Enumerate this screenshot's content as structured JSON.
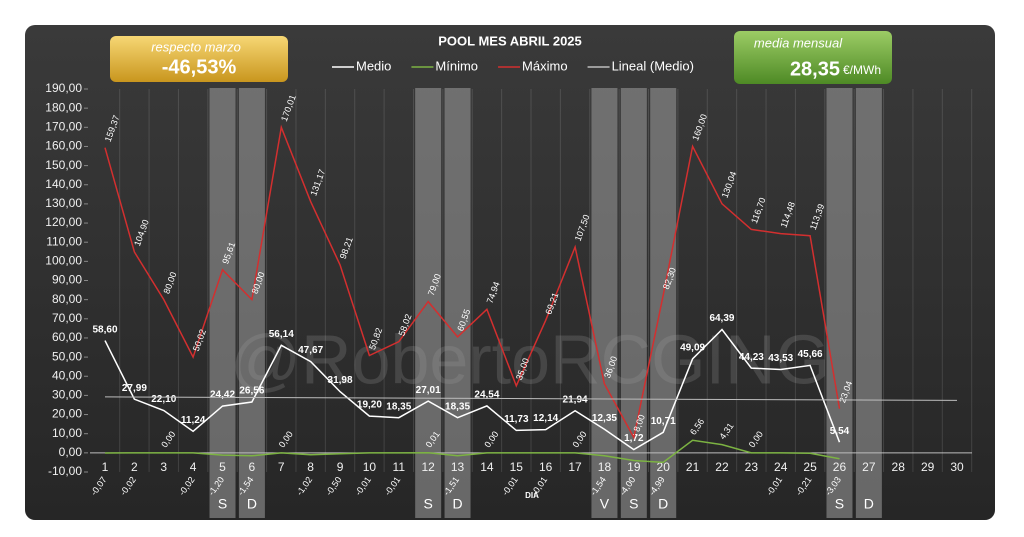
{
  "chart_data": {
    "type": "line",
    "title": "POOL  MES ABRIL 2025",
    "xlabel": "DIA",
    "watermark": "@RobertoRCGING",
    "change_box": {
      "label": "respecto marzo",
      "value": "-46,53%"
    },
    "mean_box": {
      "label": "media mensual",
      "value": "28,35",
      "unit": "€/MWh"
    },
    "x": [
      1,
      2,
      3,
      4,
      5,
      6,
      7,
      8,
      9,
      10,
      11,
      12,
      13,
      14,
      15,
      16,
      17,
      18,
      19,
      20,
      21,
      22,
      23,
      24,
      25,
      26,
      27,
      28,
      29,
      30
    ],
    "xlim": [
      1,
      30
    ],
    "xticks": [
      1,
      2,
      3,
      4,
      5,
      6,
      7,
      8,
      9,
      10,
      11,
      12,
      13,
      14,
      15,
      16,
      17,
      18,
      19,
      20,
      21,
      22,
      23,
      24,
      25,
      26,
      27,
      28,
      29,
      30
    ],
    "ylim": [
      -10,
      190
    ],
    "yticks": [
      {
        "value": -10,
        "label": "-10,00"
      },
      {
        "value": 0,
        "label": "0,00"
      },
      {
        "value": 10,
        "label": "10,00"
      },
      {
        "value": 20,
        "label": "20,00"
      },
      {
        "value": 30,
        "label": "30,00"
      },
      {
        "value": 40,
        "label": "40,00"
      },
      {
        "value": 50,
        "label": "50,00"
      },
      {
        "value": 60,
        "label": "60,00"
      },
      {
        "value": 70,
        "label": "70,00"
      },
      {
        "value": 80,
        "label": "80,00"
      },
      {
        "value": 90,
        "label": "90,00"
      },
      {
        "value": 100,
        "label": "100,00"
      },
      {
        "value": 110,
        "label": "110,00"
      },
      {
        "value": 120,
        "label": "120,00"
      },
      {
        "value": 130,
        "label": "130,00"
      },
      {
        "value": 140,
        "label": "140,00"
      },
      {
        "value": 150,
        "label": "150,00"
      },
      {
        "value": 160,
        "label": "160,00"
      },
      {
        "value": 170,
        "label": "170,00"
      },
      {
        "value": 180,
        "label": "180,00"
      },
      {
        "value": 190,
        "label": "190,00"
      }
    ],
    "grid": "x",
    "legend": "top",
    "shaded": [
      {
        "x": 5,
        "label": "S"
      },
      {
        "x": 6,
        "label": "D"
      },
      {
        "x": 12,
        "label": "S"
      },
      {
        "x": 13,
        "label": "D"
      },
      {
        "x": 18,
        "label": "V"
      },
      {
        "x": 19,
        "label": "S"
      },
      {
        "x": 20,
        "label": "D"
      },
      {
        "x": 26,
        "label": "S"
      },
      {
        "x": 27,
        "label": "D"
      }
    ],
    "series": [
      {
        "name": "Medio",
        "color": "#ffffff",
        "label_style": "bold",
        "values": [
          58.6,
          27.99,
          22.1,
          11.24,
          24.42,
          26.56,
          56.14,
          47.67,
          31.98,
          19.2,
          18.35,
          27.01,
          18.35,
          24.54,
          11.73,
          12.14,
          21.94,
          12.35,
          1.72,
          10.71,
          49.09,
          64.39,
          44.23,
          43.53,
          45.66,
          5.54,
          null,
          null,
          null,
          null
        ],
        "value_labels": [
          "58,60",
          "27,99",
          "22,10",
          "11,24",
          "24,42",
          "26,56",
          "56,14",
          "47,67",
          "31,98",
          "19,20",
          "18,35",
          "27,01",
          "18,35",
          "24,54",
          "11,73",
          "12,14",
          "21,94",
          "12,35",
          "1,72",
          "10,71",
          "49,09",
          "64,39",
          "44,23",
          "43,53",
          "45,66",
          "5,54",
          null,
          null,
          null,
          null
        ]
      },
      {
        "name": "Mínimo",
        "color": "#7cb342",
        "label_style": "min",
        "values": [
          -0.07,
          -0.02,
          0.0,
          -0.02,
          -1.2,
          -1.54,
          0.0,
          -1.02,
          -0.5,
          -0.01,
          -0.01,
          0.01,
          -1.51,
          0.0,
          -0.01,
          -0.01,
          0.0,
          -1.54,
          -4.0,
          -4.99,
          6.56,
          4.31,
          0.0,
          -0.01,
          -0.21,
          -3.03,
          null,
          null,
          null,
          null
        ],
        "value_labels": [
          "-0,07",
          "-0,02",
          "0,00",
          "-0,02",
          "-1,20",
          "-1,54",
          "0,00",
          "-1,02",
          "-0,50",
          "-0,01",
          "-0,01",
          "0,01",
          "-1,51",
          "0,00",
          "-0,01",
          "-0,01",
          "0,00",
          "-1,54",
          "-4,00",
          "-4,99",
          "6,56",
          "4,31",
          "0,00",
          "-0,01",
          "-0,21",
          "-3,03",
          null,
          null,
          null,
          null
        ]
      },
      {
        "name": "Máximo",
        "color": "#d32f2f",
        "label_style": "max",
        "values": [
          159.37,
          104.9,
          80.0,
          50.02,
          95.61,
          80.0,
          170.01,
          131.17,
          98.21,
          50.82,
          58.02,
          79.0,
          60.55,
          74.94,
          35.0,
          69.21,
          107.5,
          36.0,
          8.0,
          82.3,
          160.0,
          130.04,
          116.7,
          114.48,
          113.39,
          23.04,
          null,
          null,
          null,
          null
        ],
        "value_labels": [
          "159,37",
          "104,90",
          "80,00",
          "50,02",
          "95,61",
          "80,00",
          "170,01",
          "131,17",
          "98,21",
          "50,82",
          "58,02",
          "79,00",
          "60,55",
          "74,94",
          "35,00",
          "69,21",
          "107,50",
          "36,00",
          "8,00",
          "82,30",
          "160,00",
          "130,04",
          "116,70",
          "114,48",
          "113,39",
          "23,04",
          null,
          null,
          null,
          null
        ]
      },
      {
        "name": "Lineal (Medio)",
        "color": "#bdbdbd",
        "x": [
          1,
          30
        ],
        "values": [
          29.2,
          27.4
        ]
      }
    ]
  }
}
